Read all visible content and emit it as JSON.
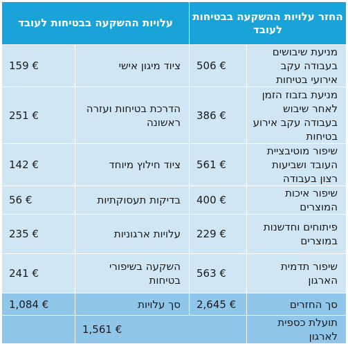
{
  "headers": {
    "returns": "החזר עלויות ההשקעה בבטיחות לעובד",
    "costs": "עלויות ההשקעה בבטיחות לעובד"
  },
  "rows": [
    {
      "return_label": "מניעת שיבושים בעבודה עקב אירועי בטיחות",
      "return_value": "506 €",
      "cost_label": "ציוד מיגון אישי",
      "cost_value": "159 €"
    },
    {
      "return_label": "מניעת בזבוז הזמן לאחר שיבוש בעבודה עקב אירוע בטיחות",
      "return_value": "386 €",
      "cost_label": "הדרכת בטיחות ועזרה ראשונה",
      "cost_value": "251 €"
    },
    {
      "return_label": "שיפור מוטיבציית העובד ושביעות רצון בעבודה",
      "return_value": "561 €",
      "cost_label": "ציוד חילוץ מיוחד",
      "cost_value": "142 €"
    },
    {
      "return_label": "שיפור איכות המוצרים",
      "return_value": "400 €",
      "cost_label": "בדיקות תעסוקתיות",
      "cost_value": "56 €"
    },
    {
      "return_label": "פיתוחים וחדשנות במוצרים",
      "return_value": "229 €",
      "cost_label": "עלויות ארגוניות",
      "cost_value": "235 €"
    },
    {
      "return_label": "שיפור תדמית הארגון",
      "return_value": "563 €",
      "cost_label": "השקעה בשיפורי בטיחות",
      "cost_value": "241 €"
    }
  ],
  "totals": {
    "returns_label": "סך החזרים",
    "returns_value": "2,645 €",
    "costs_label": "סך עלויות",
    "costs_value": "1,084 €"
  },
  "net": {
    "label": "תועלת כספית לארגון",
    "value": "1,561 €"
  },
  "colors": {
    "header": "#1aa3d9",
    "cell": "#cfe6f5",
    "total": "#8fc6ea"
  }
}
